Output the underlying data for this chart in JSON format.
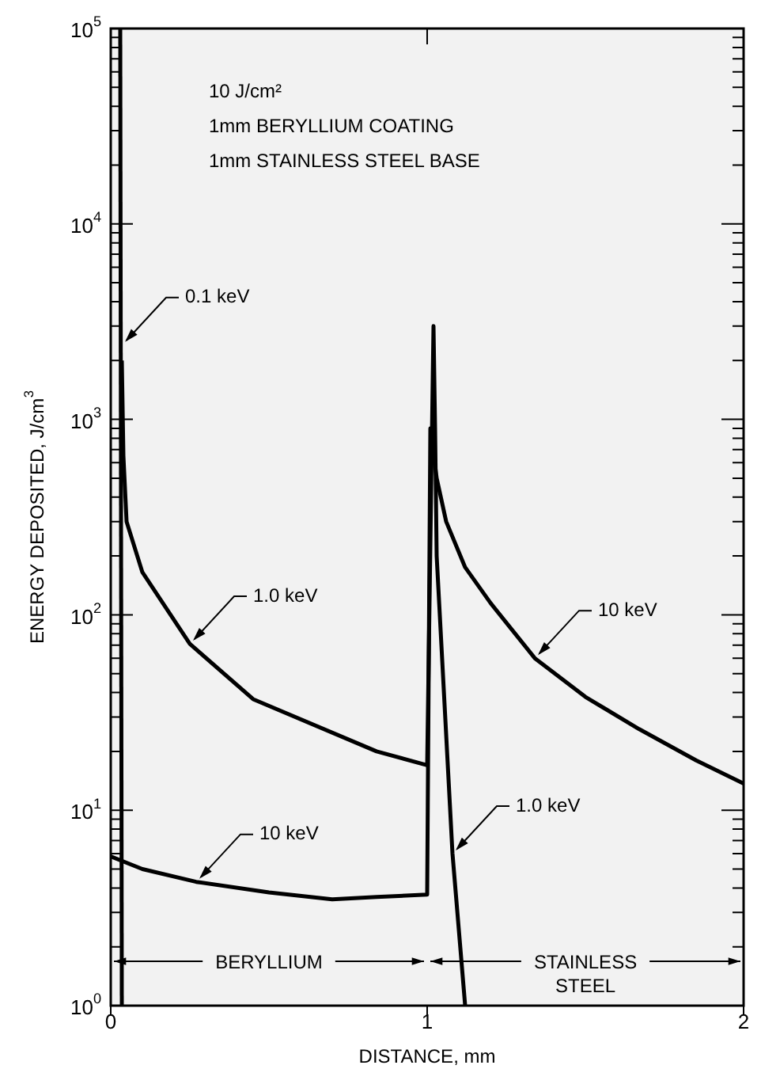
{
  "chart_data": {
    "type": "line",
    "xlabel": "DISTANCE, mm",
    "ylabel": "ENERGY DEPOSITED, J/cm$^{3}$",
    "log": "y",
    "legend": false,
    "marker": "none",
    "line_style": "solid",
    "xlim": [
      0,
      2
    ],
    "xticks": [
      0,
      1,
      2
    ],
    "ylim": [
      1,
      100000
    ],
    "yticks": [
      {
        "value": 1,
        "label": "10$^{0}$"
      },
      {
        "value": 2,
        "label": null
      },
      {
        "value": 3,
        "label": null
      },
      {
        "value": 4,
        "label": null
      },
      {
        "value": 5,
        "label": null
      },
      {
        "value": 6,
        "label": null
      },
      {
        "value": 7,
        "label": null
      },
      {
        "value": 8,
        "label": null
      },
      {
        "value": 9,
        "label": null
      },
      {
        "value": 10,
        "label": "10$^{1}$"
      },
      {
        "value": 20,
        "label": null
      },
      {
        "value": 30,
        "label": null
      },
      {
        "value": 40,
        "label": null
      },
      {
        "value": 50,
        "label": null
      },
      {
        "value": 60,
        "label": null
      },
      {
        "value": 70,
        "label": null
      },
      {
        "value": 80,
        "label": null
      },
      {
        "value": 90,
        "label": null
      },
      {
        "value": 100,
        "label": "10$^{2}$"
      },
      {
        "value": 200,
        "label": null
      },
      {
        "value": 300,
        "label": null
      },
      {
        "value": 400,
        "label": null
      },
      {
        "value": 500,
        "label": null
      },
      {
        "value": 600,
        "label": null
      },
      {
        "value": 700,
        "label": null
      },
      {
        "value": 800,
        "label": null
      },
      {
        "value": 900,
        "label": null
      },
      {
        "value": 1000,
        "label": "10$^{3}$"
      },
      {
        "value": 2000,
        "label": null
      },
      {
        "value": 3000,
        "label": null
      },
      {
        "value": 4000,
        "label": null
      },
      {
        "value": 5000,
        "label": null
      },
      {
        "value": 6000,
        "label": null
      },
      {
        "value": 7000,
        "label": null
      },
      {
        "value": 8000,
        "label": null
      },
      {
        "value": 9000,
        "label": null
      },
      {
        "value": 10000,
        "label": "10$^{4}$"
      },
      {
        "value": 20000,
        "label": null
      },
      {
        "value": 30000,
        "label": null
      },
      {
        "value": 40000,
        "label": null
      },
      {
        "value": 50000,
        "label": null
      },
      {
        "value": 60000,
        "label": null
      },
      {
        "value": 70000,
        "label": null
      },
      {
        "value": 80000,
        "label": null
      },
      {
        "value": 90000,
        "label": null
      },
      {
        "value": 100000,
        "label": "10$^{5}$"
      }
    ],
    "series": [
      {
        "color": "#000000",
        "x": [
          0.03,
          0.035
        ],
        "values": [
          100000,
          1
        ]
      },
      {
        "color": "#000000",
        "x": [
          0.035,
          0.04,
          0.05,
          0.1,
          0.25,
          0.45,
          0.84,
          1.0,
          1.02,
          1.025,
          1.03,
          1.08,
          1.12
        ],
        "values": [
          2000,
          650,
          300,
          165,
          71,
          37,
          20,
          17,
          3000,
          900,
          200,
          6,
          1
        ]
      },
      {
        "color": "#000000",
        "x": [
          0,
          0.1,
          0.27,
          0.5,
          0.7,
          0.84,
          1.0,
          1.01,
          1.03,
          1.06,
          1.12,
          1.2,
          1.34,
          1.5,
          1.67,
          1.85,
          2
        ],
        "values": [
          5.8,
          5,
          4.3,
          3.8,
          3.5,
          3.6,
          3.7,
          900,
          500,
          300,
          175,
          115,
          60,
          38,
          26,
          18,
          13.7
        ]
      }
    ],
    "bands": [
      {
        "axis": "x",
        "from": 0,
        "to": 1,
        "label": "BERYLLIUM",
        "color": "#f2f2f2"
      },
      {
        "axis": "x",
        "from": 1,
        "to": 2,
        "label": "STAINLESS STEEL",
        "color": "#f2f2f2"
      }
    ],
    "annotations": [
      "10 J/cm²",
      "1mm BERYLLIUM COATING",
      "1mm STAINLESS STEEL BASE",
      {
        "text": "0.1 keV",
        "x": 0.035,
        "y": 2400
      },
      {
        "text": "1.0 keV",
        "x": 0.25,
        "y": 71
      },
      {
        "text": "10 keV",
        "x": 0.27,
        "y": 4.3
      },
      {
        "text": "10 keV",
        "x": 1.34,
        "y": 60
      },
      {
        "text": "1.0 keV",
        "x": 1.08,
        "y": 6
      }
    ]
  }
}
